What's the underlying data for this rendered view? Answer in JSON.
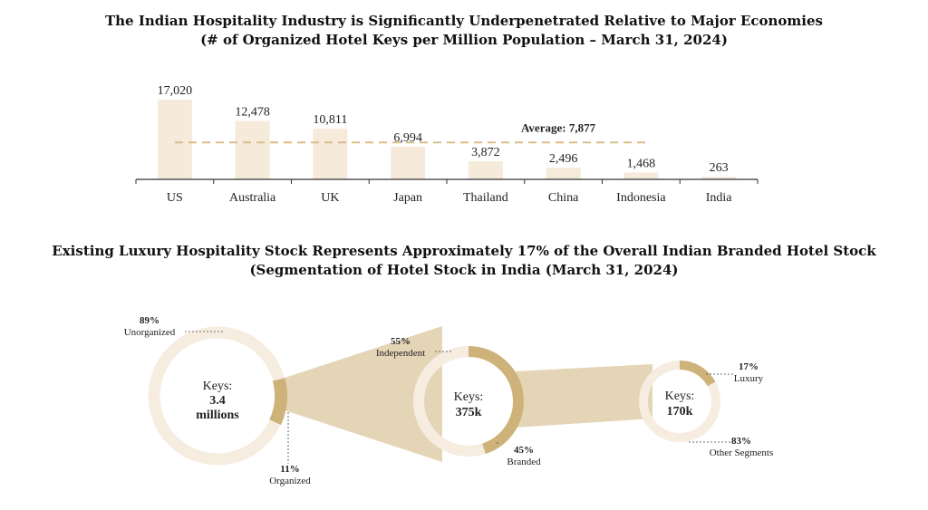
{
  "titles": {
    "chart1_line1": "The Indian Hospitality Industry is Significantly Underpenetrated Relative to Major Economies",
    "chart1_line2": "(# of Organized Hotel Keys per Million Population – March 31, 2024)",
    "chart2_line1": "Existing Luxury Hospitality Stock Represents Approximately 17% of the Overall Indian Branded Hotel Stock",
    "chart2_line2": "(Segmentation of Hotel Stock in India (March 31, 2024)"
  },
  "chart_data": [
    {
      "type": "bar",
      "title": "The Indian Hospitality Industry is Significantly Underpenetrated Relative to Major Economies",
      "subtitle": "(# of Organized Hotel Keys per Million Population – March 31, 2024)",
      "categories": [
        "US",
        "Australia",
        "UK",
        "Japan",
        "Thailand",
        "China",
        "Indonesia",
        "India"
      ],
      "values": [
        17020,
        12478,
        10811,
        6994,
        3872,
        2496,
        1468,
        263
      ],
      "value_labels": [
        "17,020",
        "12,478",
        "10,811",
        "6,994",
        "3,872",
        "2,496",
        "1,468",
        "263"
      ],
      "average": 7877,
      "average_label": "Average: 7,877",
      "ylim": [
        0,
        17020
      ],
      "xlabel": "",
      "ylabel": "",
      "grid": false,
      "colors": {
        "bar": "#f6eadb",
        "average_line": "#d9bd8c",
        "axis": "#333333"
      }
    },
    {
      "type": "pie",
      "title": "Existing Luxury Hospitality Stock Represents Approximately 17% of the Overall Indian Branded Hotel Stock",
      "subtitle": "(Segmentation of Hotel Stock in India (March 31, 2024)",
      "rings": [
        {
          "center_lines": [
            "Keys:",
            "3.4",
            "millions"
          ],
          "segments": [
            {
              "name": "Unorganized",
              "label": "89%",
              "value": 89
            },
            {
              "name": "Organized",
              "label": "11%",
              "value": 11
            }
          ]
        },
        {
          "center_lines": [
            "Keys:",
            "375k"
          ],
          "segments": [
            {
              "name": "Independent",
              "label": "55%",
              "value": 55
            },
            {
              "name": "Branded",
              "label": "45%",
              "value": 45
            }
          ]
        },
        {
          "center_lines": [
            "Keys:",
            "170k"
          ],
          "segments": [
            {
              "name": "Luxury",
              "label": "17%",
              "value": 17
            },
            {
              "name": "Other Segments",
              "label": "83%",
              "value": 83
            }
          ]
        }
      ],
      "colors": {
        "light": "#f6ece0",
        "dark": "#cdb27a"
      }
    }
  ]
}
